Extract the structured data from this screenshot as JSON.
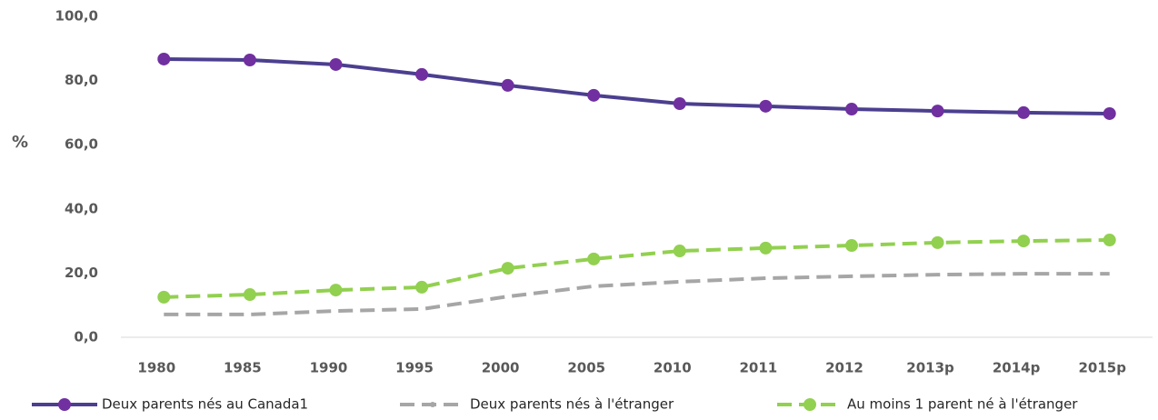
{
  "chart_data": {
    "type": "line",
    "y_label": "%",
    "categories": [
      "1980",
      "1985",
      "1990",
      "1995",
      "2000",
      "2005",
      "2010",
      "2011",
      "2012",
      "2013p",
      "2014p",
      "2015p"
    ],
    "series": [
      {
        "name": "Deux parents nés au Canada1",
        "color": "#4b3f8f",
        "marker_color": "#7030a0",
        "dashed": false,
        "markers": true,
        "values": [
          86.7,
          86.4,
          85.0,
          81.9,
          78.5,
          75.4,
          72.8,
          72.0,
          71.1,
          70.5,
          70.0,
          69.7
        ]
      },
      {
        "name": "Deux parents nés à l'étranger",
        "color": "#a6a6a6",
        "marker_color": "#a6a6a6",
        "dashed": true,
        "markers": false,
        "values": [
          7.1,
          7.1,
          8.2,
          8.8,
          12.7,
          15.9,
          17.3,
          18.4,
          19.0,
          19.5,
          19.8,
          19.8
        ]
      },
      {
        "name": "Au moins 1 parent né à l'étranger",
        "color": "#92d050",
        "marker_color": "#92d050",
        "dashed": true,
        "markers": true,
        "values": [
          12.5,
          13.3,
          14.7,
          15.6,
          21.5,
          24.4,
          26.9,
          27.8,
          28.6,
          29.5,
          30.0,
          30.3
        ]
      }
    ],
    "ylim": [
      0,
      100
    ],
    "yticks": [
      {
        "value": 0,
        "label": "0,0"
      },
      {
        "value": 20,
        "label": "20,0"
      },
      {
        "value": 40,
        "label": "40,0"
      },
      {
        "value": 60,
        "label": "60,0"
      },
      {
        "value": 80,
        "label": "80,0"
      },
      {
        "value": 100,
        "label": "100,0"
      }
    ],
    "grid": false,
    "legend": "bottom"
  }
}
